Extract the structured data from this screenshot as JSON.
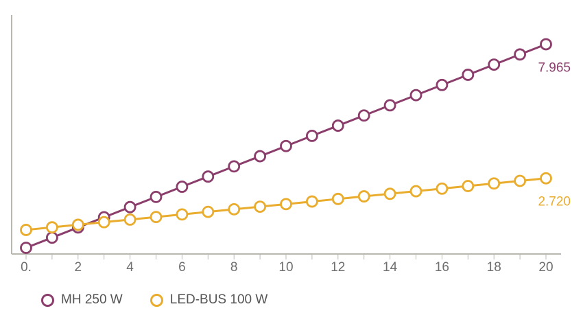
{
  "chart_data": {
    "type": "line",
    "x": [
      0,
      1,
      2,
      3,
      4,
      5,
      6,
      7,
      8,
      9,
      10,
      11,
      12,
      13,
      14,
      15,
      16,
      17,
      18,
      19,
      20
    ],
    "xlim": [
      0,
      20
    ],
    "xticks": [
      0,
      2,
      4,
      6,
      8,
      10,
      12,
      14,
      16,
      18,
      20
    ],
    "xtick_labels": [
      "0.",
      "2",
      "4",
      "6",
      "8",
      "10",
      "12",
      "14",
      "16",
      "18",
      "20"
    ],
    "ylim": [
      0,
      8.3
    ],
    "y_ticks_shown": false,
    "grid": false,
    "legend_position": "bottom-left",
    "series": [
      {
        "name": "MH 250 W",
        "color": "#8b3d6b",
        "values": [
          0,
          0.398,
          0.797,
          1.195,
          1.593,
          1.991,
          2.39,
          2.788,
          3.186,
          3.584,
          3.983,
          4.381,
          4.779,
          5.177,
          5.576,
          5.974,
          6.372,
          6.77,
          7.169,
          7.567,
          7.965
        ],
        "end_label": "7.965"
      },
      {
        "name": "LED-BUS 100 W",
        "color": "#e9ac2c",
        "values": [
          0.7,
          0.801,
          0.902,
          1.003,
          1.104,
          1.205,
          1.306,
          1.407,
          1.508,
          1.609,
          1.71,
          1.811,
          1.912,
          2.013,
          2.114,
          2.215,
          2.316,
          2.417,
          2.518,
          2.619,
          2.72
        ],
        "end_label": "2.720"
      }
    ]
  }
}
